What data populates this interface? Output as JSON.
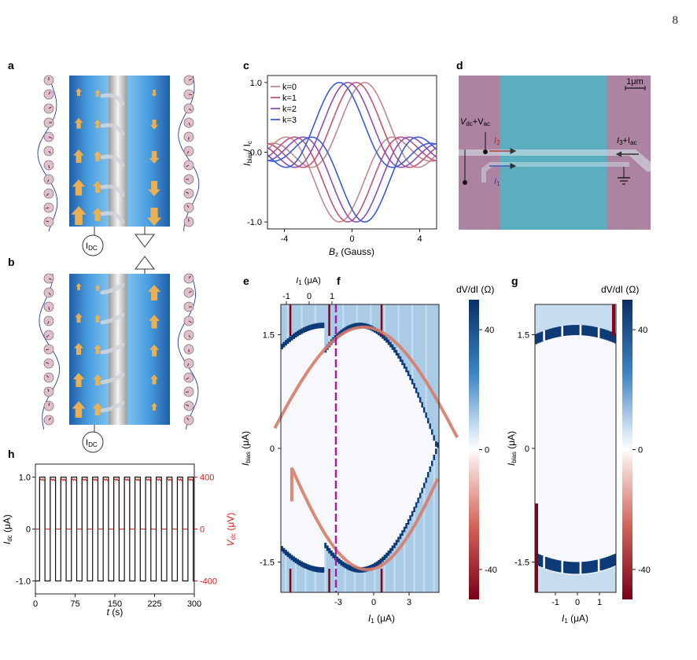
{
  "page_number": "8",
  "panel_letters": [
    "a",
    "b",
    "c",
    "d",
    "e",
    "f",
    "g",
    "h"
  ],
  "panel_a": {
    "source_label": "I",
    "source_sub": "DC",
    "left_spins": 11,
    "right_spins": 11
  },
  "panel_b": {
    "source_label": "I",
    "source_sub": "DC"
  },
  "chart_data": [
    {
      "panel": "c",
      "type": "line",
      "ylabel_main": "I",
      "ylabel_sub": "bias",
      "ylabel_rest": "/ I",
      "ylabel_sub2": "c",
      "xlabel_main": "B",
      "xlabel_sub": "z",
      "xlabel_rest": " (Gauss)",
      "xlim": [
        -5,
        5
      ],
      "ylim": [
        -1.1,
        1.1
      ],
      "xticks": [
        -4,
        0,
        4
      ],
      "yticks": [
        -1.0,
        0.0,
        1.0
      ],
      "series": [
        {
          "name": "k=0",
          "k": 0,
          "shift": 1.5,
          "color": "#c08a8a"
        },
        {
          "name": "k=1",
          "k": 1,
          "shift": 1.0,
          "color": "#c0547a"
        },
        {
          "name": "k=2",
          "k": 2,
          "shift": 0.5,
          "color": "#8a4fb8"
        },
        {
          "name": "k=3",
          "k": 3,
          "shift": 0.0,
          "color": "#3c5ad8"
        }
      ],
      "legend_placement": "top-left"
    },
    {
      "panel": "e",
      "type": "heatmap",
      "ylabel_main": "I",
      "ylabel_sub": "bias",
      "ylabel_rest": " (μA)",
      "yticks": [
        1.5,
        0,
        -1.5
      ],
      "ylim": [
        -1.9,
        1.9
      ],
      "top_xlabel_main": "I",
      "top_xlabel_sub": "1",
      "top_xlabel_rest": " (μA)",
      "top_xticks": [
        -1,
        0,
        1
      ]
    },
    {
      "panel": "f",
      "type": "heatmap",
      "xlabel_main": "I",
      "xlabel_sub": "1",
      "xlabel_rest": " (μA)",
      "xticks": [
        -3,
        0,
        3
      ],
      "colorbar_label": "dV/dI (Ω)",
      "colorbar_ticks": [
        40,
        0,
        -40
      ],
      "colorbar_range": [
        -50,
        50
      ]
    },
    {
      "panel": "g",
      "type": "heatmap",
      "ylabel_main": "I",
      "ylabel_sub": "bias",
      "ylabel_rest": " (μA)",
      "yticks": [
        1.5,
        0,
        -1.5
      ],
      "xlabel_main": "I",
      "xlabel_sub": "1",
      "xlabel_rest": " (μA)",
      "xticks": [
        -1,
        0,
        1
      ],
      "colorbar_label": "dV/dI (Ω)",
      "colorbar_ticks": [
        40,
        0,
        -40
      ]
    },
    {
      "panel": "h",
      "type": "line",
      "xlabel_main": "t",
      "xlabel_rest": " (s)",
      "xticks": [
        0,
        75,
        150,
        225,
        300
      ],
      "xlim": [
        0,
        300
      ],
      "left_ylabel_main": "I",
      "left_ylabel_sub": "dc",
      "left_ylabel_rest": " (μA)",
      "left_yticks": [
        1.0,
        0,
        -1.0
      ],
      "right_ylabel_main": "V",
      "right_ylabel_sub": "dc",
      "right_ylabel_rest": " (μV)",
      "right_yticks": [
        400,
        0,
        -400
      ],
      "right_color": "#d42020",
      "cycles": 15,
      "series": [
        {
          "quantity": "I_dc",
          "high": 1.0,
          "low": -1.0,
          "color": "#111111"
        },
        {
          "quantity": "V_dc",
          "high": 380,
          "low": 0,
          "color": "#d42020"
        }
      ]
    }
  ],
  "panel_d": {
    "scale_bar": "1μm",
    "vlabel_main": "V",
    "vlabel_sub1": "dc",
    "vlabel_plus": "+V",
    "vlabel_sub2": "ac",
    "i2_main": "I",
    "i2_sub": "2",
    "i1_main": "I",
    "i1_sub": "1",
    "i3_main": "I",
    "i3_sub": "3",
    "i3_plus": "+I",
    "i3_sub2": "ac"
  },
  "colors": {
    "arrow": "#f5b14a",
    "strip_blue": "#3a8ad0",
    "heat_deep_blue": "#0d3b78",
    "heat_red": "#8b0018",
    "fit_curve": "#d67c6a",
    "dashed_line": "#a020a0",
    "d_pink": "#b48aa8",
    "d_cyan": "#5fb6c6"
  }
}
